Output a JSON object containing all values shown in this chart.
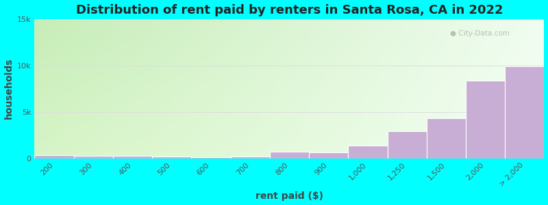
{
  "title": "Distribution of rent paid by renters in Santa Rosa, CA in 2022",
  "xlabel": "rent paid ($)",
  "ylabel": "households",
  "background_color": "#00FFFF",
  "bar_color": "#c8aed4",
  "bar_edge_color": "#ffffff",
  "categories": [
    "200",
    "300",
    "400",
    "500",
    "600",
    "700",
    "800",
    "900",
    "1,000",
    "1,250",
    "1,500",
    "2,000",
    "> 2,000"
  ],
  "values": [
    350,
    230,
    240,
    170,
    80,
    200,
    700,
    600,
    1350,
    2900,
    4300,
    8400,
    9900
  ],
  "ylim": [
    0,
    15000
  ],
  "yticks": [
    0,
    5000,
    10000,
    15000
  ],
  "ytick_labels": [
    "0",
    "5k",
    "10k",
    "15k"
  ],
  "title_fontsize": 13,
  "axis_label_fontsize": 10,
  "tick_fontsize": 8,
  "watermark_text": "City-Data.com",
  "grad_color_topleft": "#c8e6b0",
  "grad_color_topright": "#eef8f0",
  "grad_color_bottomleft": "#d8f0c0",
  "grad_color_bottomright": "#f5fcf5"
}
